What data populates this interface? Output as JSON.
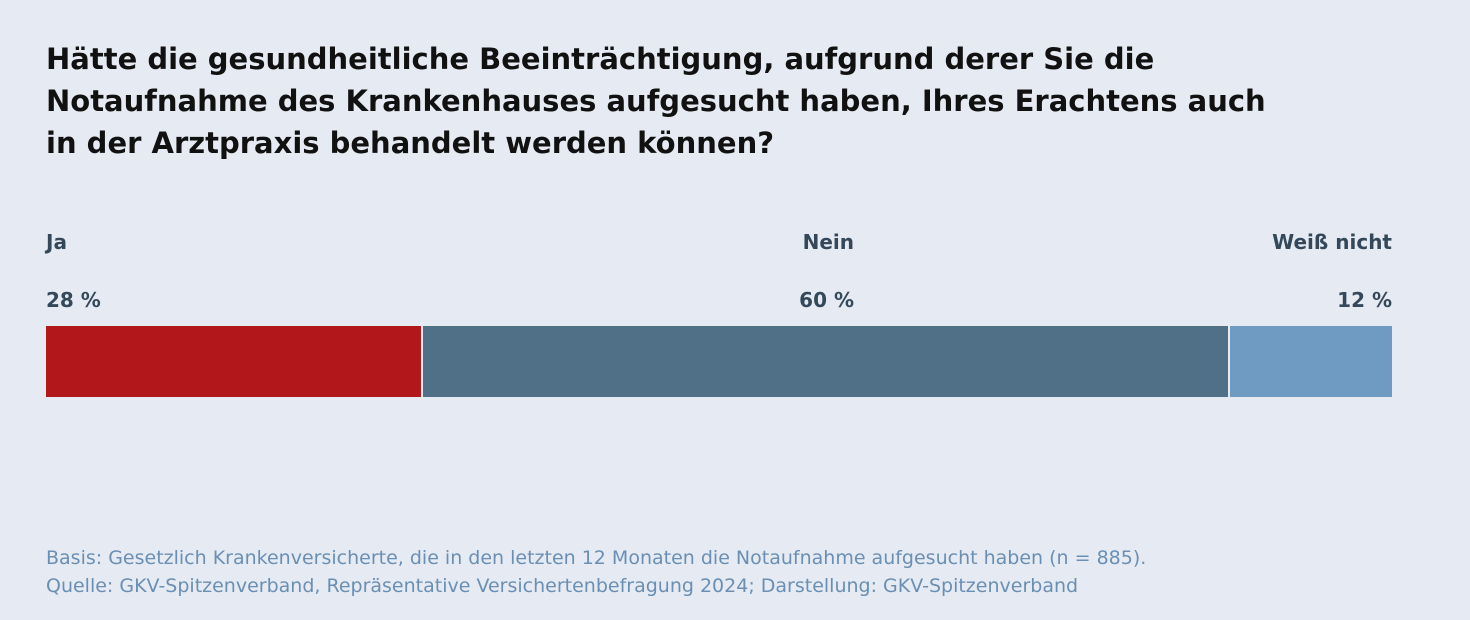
{
  "chart_data": {
    "type": "bar",
    "orientation": "horizontal-stacked",
    "title": "Hätte die gesundheitliche Beeinträchtigung, aufgrund derer Sie die Notaufnahme des Krankenhauses aufgesucht haben, Ihres Erachtens auch in der Arztpraxis behandelt werden können?",
    "categories": [
      "Ja",
      "Nein",
      "Weiß nicht"
    ],
    "values": [
      28,
      60,
      12
    ],
    "value_labels": [
      "28 %",
      "60 %",
      "12 %"
    ],
    "colors": [
      "#b2181b",
      "#507087",
      "#6f9bc2"
    ],
    "unit": "%",
    "total": 100,
    "grid": false,
    "legend": "none"
  },
  "footnote": {
    "basis": "Basis: Gesetzlich Krankenversicherte, die in den letzten 12 Monaten die Notaufnahme aufgesucht haben (n = 885).",
    "source": "Quelle: GKV-Spitzenverband, Repräsentative Versichertenbefragung 2024; Darstellung: GKV-Spitzenverband"
  }
}
